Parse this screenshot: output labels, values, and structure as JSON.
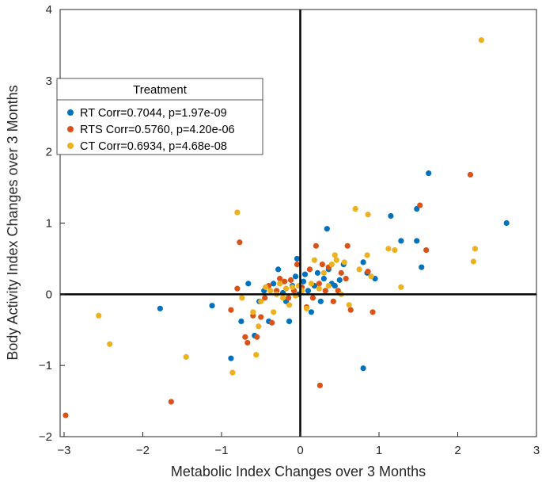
{
  "chart_data": {
    "type": "scatter",
    "title": "",
    "xlabel": "Metabolic Index Changes over 3 Months",
    "ylabel": "Body Activity Index Changes over 3 Months",
    "xlim": [
      -3.05,
      3
    ],
    "ylim": [
      -2,
      4
    ],
    "xticks": [
      -3,
      -2,
      -1,
      0,
      1,
      2,
      3
    ],
    "yticks": [
      -2,
      -1,
      0,
      1,
      2,
      3,
      4
    ],
    "grid": false,
    "zero_lines": true,
    "legend": {
      "title": "Treatment",
      "placement": "top-left"
    },
    "series": [
      {
        "name": "RT Corr=0.7044, p=1.97e-09",
        "color": "#0072BD",
        "points": [
          [
            -1.78,
            -0.2
          ],
          [
            -1.12,
            -0.16
          ],
          [
            -0.88,
            -0.9
          ],
          [
            -0.75,
            -0.38
          ],
          [
            -0.66,
            0.15
          ],
          [
            -0.58,
            -0.58
          ],
          [
            -0.52,
            -0.1
          ],
          [
            -0.46,
            0.05
          ],
          [
            -0.4,
            -0.38
          ],
          [
            -0.34,
            0.15
          ],
          [
            -0.28,
            0.35
          ],
          [
            -0.22,
            0.02
          ],
          [
            -0.18,
            -0.1
          ],
          [
            -0.14,
            -0.38
          ],
          [
            -0.1,
            0.12
          ],
          [
            -0.06,
            0.25
          ],
          [
            -0.04,
            0.5
          ],
          [
            -0.02,
            0.0
          ],
          [
            0.04,
            0.18
          ],
          [
            0.06,
            0.28
          ],
          [
            0.1,
            0.05
          ],
          [
            0.14,
            -0.25
          ],
          [
            0.18,
            0.12
          ],
          [
            0.22,
            0.3
          ],
          [
            0.26,
            -0.1
          ],
          [
            0.3,
            0.22
          ],
          [
            0.34,
            0.92
          ],
          [
            0.36,
            0.35
          ],
          [
            0.4,
            0.15
          ],
          [
            0.44,
            0.12
          ],
          [
            0.5,
            0.2
          ],
          [
            0.55,
            0.42
          ],
          [
            0.8,
            0.45
          ],
          [
            0.8,
            -1.04
          ],
          [
            0.85,
            0.3
          ],
          [
            0.95,
            0.22
          ],
          [
            1.15,
            1.1
          ],
          [
            1.28,
            0.75
          ],
          [
            1.48,
            0.75
          ],
          [
            1.48,
            1.2
          ],
          [
            1.54,
            0.38
          ],
          [
            1.63,
            1.7
          ],
          [
            2.62,
            1.0
          ]
        ]
      },
      {
        "name": "RTS Corr=0.5760, p=4.20e-06",
        "color": "#D95319",
        "points": [
          [
            -2.98,
            -1.7
          ],
          [
            -1.64,
            -1.51
          ],
          [
            -0.88,
            -0.22
          ],
          [
            -0.8,
            0.08
          ],
          [
            -0.77,
            0.73
          ],
          [
            -0.7,
            -0.6
          ],
          [
            -0.67,
            -0.68
          ],
          [
            -0.6,
            -0.3
          ],
          [
            -0.55,
            -0.6
          ],
          [
            -0.5,
            -0.32
          ],
          [
            -0.45,
            -0.05
          ],
          [
            -0.4,
            0.12
          ],
          [
            -0.36,
            -0.4
          ],
          [
            -0.3,
            0.05
          ],
          [
            -0.26,
            0.22
          ],
          [
            -0.2,
            0.18
          ],
          [
            -0.15,
            -0.05
          ],
          [
            -0.12,
            0.2
          ],
          [
            -0.08,
            0.05
          ],
          [
            -0.04,
            0.42
          ],
          [
            0.02,
            0.1
          ],
          [
            0.08,
            -0.18
          ],
          [
            0.12,
            0.35
          ],
          [
            0.16,
            -0.05
          ],
          [
            0.2,
            0.68
          ],
          [
            0.24,
            0.15
          ],
          [
            0.25,
            -1.28
          ],
          [
            0.28,
            0.42
          ],
          [
            0.32,
            0.05
          ],
          [
            0.36,
            0.38
          ],
          [
            0.42,
            -0.1
          ],
          [
            0.48,
            0.05
          ],
          [
            0.52,
            0.3
          ],
          [
            0.58,
            0.22
          ],
          [
            0.6,
            0.68
          ],
          [
            0.64,
            -0.22
          ],
          [
            0.86,
            0.32
          ],
          [
            0.92,
            -0.25
          ],
          [
            1.52,
            1.25
          ],
          [
            1.6,
            0.62
          ],
          [
            2.16,
            1.68
          ]
        ]
      },
      {
        "name": "CT Corr=0.6934, p=4.68e-08",
        "color": "#EDB120",
        "points": [
          [
            -2.56,
            -0.3
          ],
          [
            -2.42,
            -0.7
          ],
          [
            -1.45,
            -0.88
          ],
          [
            -0.86,
            -1.1
          ],
          [
            -0.8,
            1.15
          ],
          [
            -0.74,
            -0.05
          ],
          [
            -0.6,
            -0.25
          ],
          [
            -0.56,
            -0.85
          ],
          [
            -0.53,
            -0.45
          ],
          [
            -0.5,
            -0.1
          ],
          [
            -0.44,
            0.1
          ],
          [
            -0.38,
            0.05
          ],
          [
            -0.34,
            -0.25
          ],
          [
            -0.3,
            0.0
          ],
          [
            -0.26,
            0.15
          ],
          [
            -0.22,
            -0.05
          ],
          [
            -0.18,
            0.08
          ],
          [
            -0.14,
            -0.15
          ],
          [
            -0.1,
            0.1
          ],
          [
            -0.06,
            -0.02
          ],
          [
            -0.02,
            0.12
          ],
          [
            0.02,
            0.05
          ],
          [
            0.08,
            -0.2
          ],
          [
            0.14,
            0.15
          ],
          [
            0.18,
            0.48
          ],
          [
            0.24,
            0.08
          ],
          [
            0.3,
            0.3
          ],
          [
            0.36,
            0.12
          ],
          [
            0.4,
            0.42
          ],
          [
            0.44,
            0.55
          ],
          [
            0.46,
            0.48
          ],
          [
            0.52,
            0.0
          ],
          [
            0.56,
            0.45
          ],
          [
            0.62,
            -0.15
          ],
          [
            0.7,
            1.2
          ],
          [
            0.75,
            0.35
          ],
          [
            0.85,
            0.55
          ],
          [
            0.86,
            1.12
          ],
          [
            0.9,
            0.25
          ],
          [
            1.12,
            0.64
          ],
          [
            1.2,
            0.62
          ],
          [
            1.28,
            0.1
          ],
          [
            2.2,
            0.46
          ],
          [
            2.22,
            0.64
          ],
          [
            2.3,
            3.57
          ]
        ]
      }
    ]
  }
}
